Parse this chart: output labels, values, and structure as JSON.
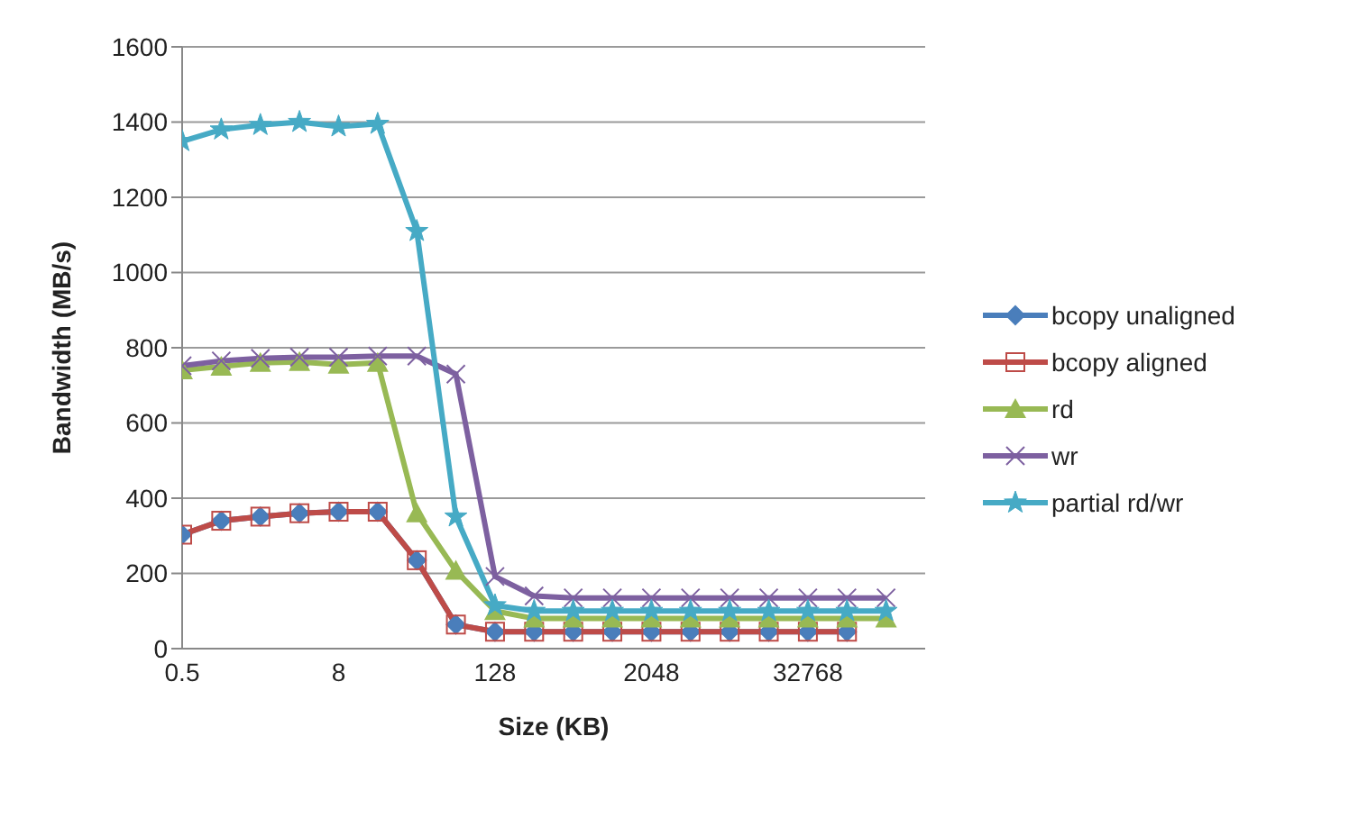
{
  "chart_data": {
    "type": "line",
    "xlabel": "Size (KB)",
    "ylabel": "Bandwidth (MB/s)",
    "categories": [
      "0.5",
      null,
      null,
      null,
      "8",
      null,
      null,
      null,
      "128",
      null,
      null,
      null,
      "2048",
      null,
      null,
      null,
      "32768",
      null,
      null
    ],
    "ylim": [
      0,
      1600
    ],
    "yticks": [
      0,
      200,
      400,
      600,
      800,
      1000,
      1200,
      1400,
      1600
    ],
    "grid": "y",
    "legend": "right",
    "series": [
      {
        "name": "bcopy unaligned",
        "color": "#4a7ebb",
        "marker": "diamond",
        "values": [
          303,
          340,
          351,
          360,
          364,
          364,
          235,
          64,
          45,
          45,
          45,
          45,
          45,
          45,
          45,
          45,
          45,
          45,
          null
        ]
      },
      {
        "name": "bcopy aligned",
        "color": "#be4b48",
        "marker": "square",
        "values": [
          303,
          340,
          351,
          360,
          364,
          364,
          235,
          64,
          45,
          45,
          45,
          45,
          45,
          45,
          45,
          45,
          45,
          45,
          null
        ]
      },
      {
        "name": "rd",
        "color": "#98b954",
        "marker": "triangle",
        "values": [
          740,
          750,
          760,
          762,
          755,
          760,
          360,
          207,
          100,
          80,
          80,
          80,
          80,
          80,
          80,
          80,
          80,
          80,
          80
        ]
      },
      {
        "name": "wr",
        "color": "#7d60a0",
        "marker": "cross",
        "values": [
          752,
          765,
          772,
          775,
          775,
          778,
          778,
          730,
          192,
          140,
          135,
          135,
          135,
          135,
          135,
          135,
          135,
          135,
          135
        ]
      },
      {
        "name": "partial rd/wr",
        "color": "#46aac5",
        "marker": "star",
        "values": [
          1349,
          1380,
          1392,
          1400,
          1388,
          1395,
          1110,
          351,
          115,
          100,
          100,
          100,
          100,
          100,
          100,
          100,
          100,
          100,
          100
        ]
      }
    ]
  }
}
